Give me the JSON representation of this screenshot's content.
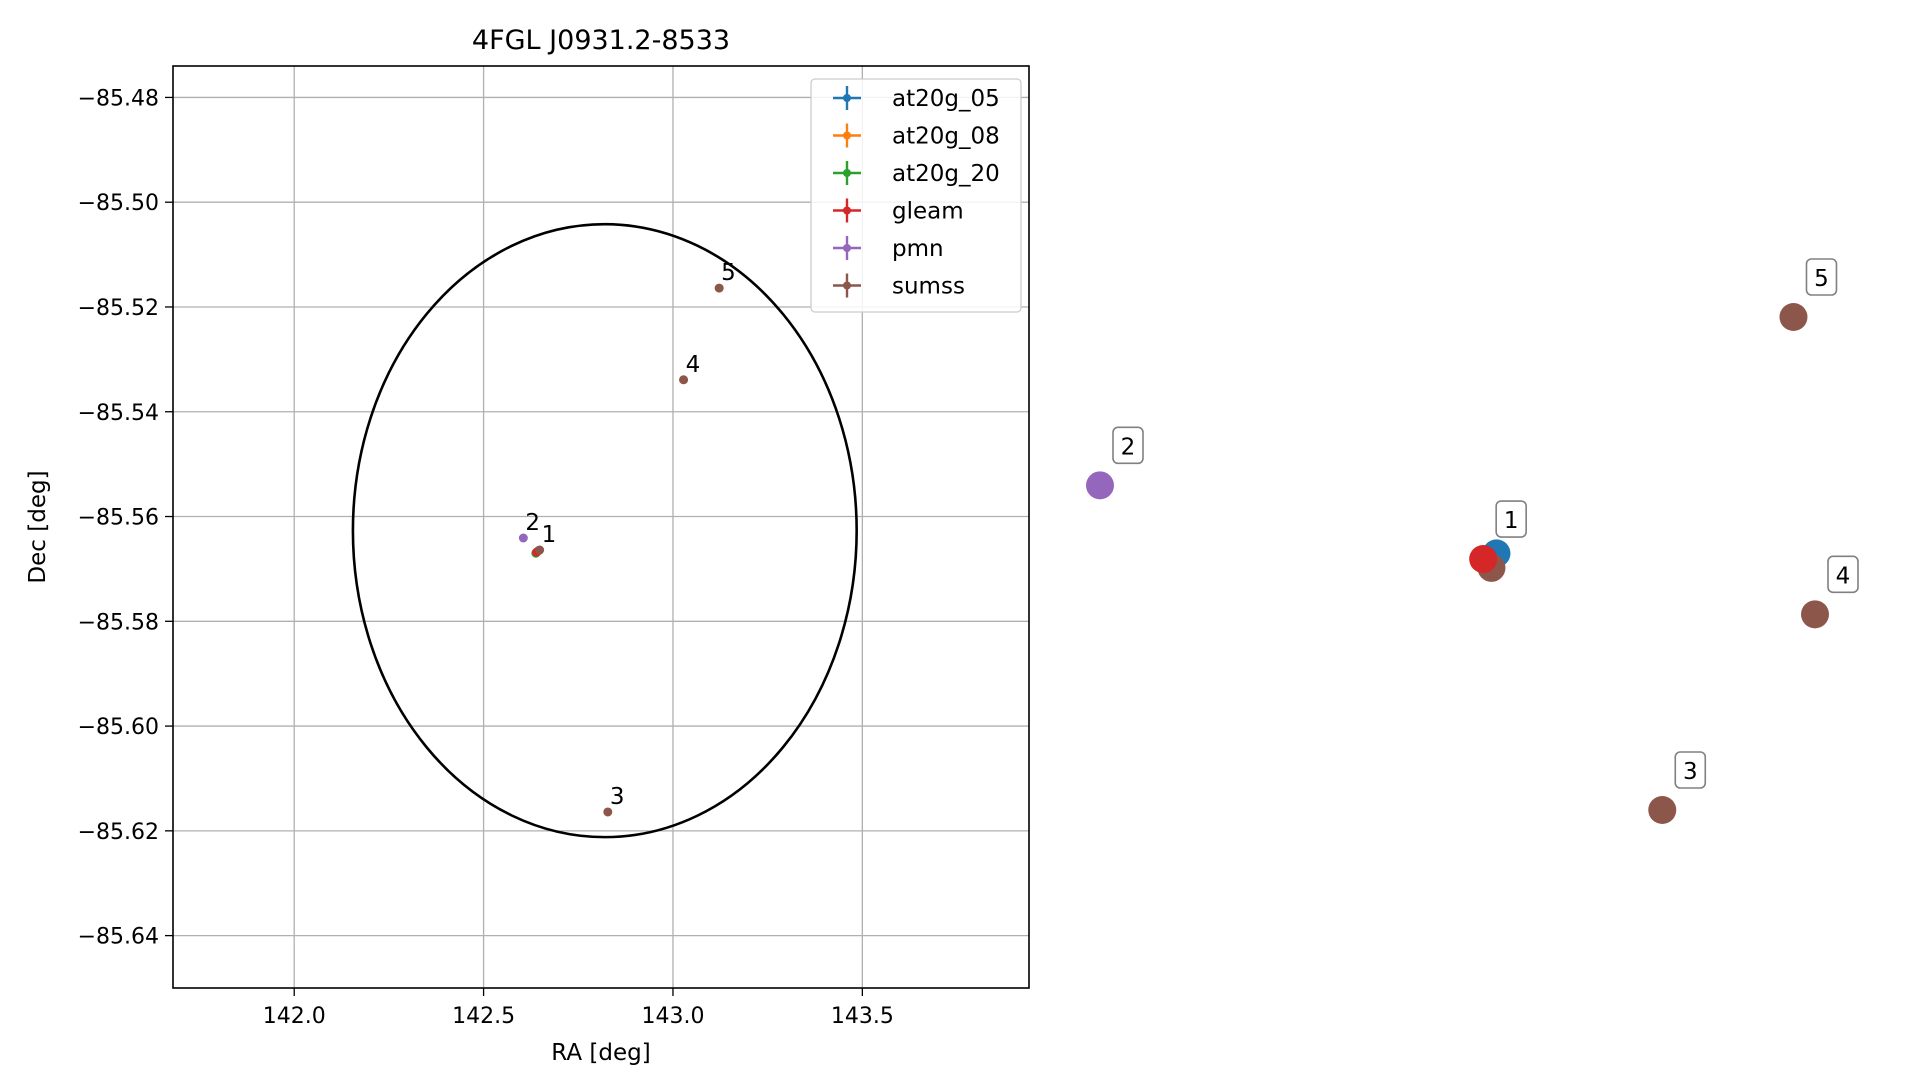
{
  "chart_data": [
    {
      "type": "scatter",
      "title": "4FGL J0931.2-8533",
      "xlabel": "RA [deg]",
      "ylabel": "Dec [deg]",
      "xlim": [
        141.68,
        143.94
      ],
      "ylim": [
        -85.65,
        -85.474
      ],
      "xticks": [
        142.0,
        142.5,
        143.0,
        143.5
      ],
      "xtick_labels": [
        "142.0",
        "142.5",
        "143.0",
        "143.5"
      ],
      "yticks": [
        -85.48,
        -85.5,
        -85.52,
        -85.54,
        -85.56,
        -85.58,
        -85.6,
        -85.62,
        -85.64
      ],
      "ytick_labels": [
        "−85.48",
        "−85.50",
        "−85.52",
        "−85.54",
        "−85.56",
        "−85.58",
        "−85.60",
        "−85.62",
        "−85.64"
      ],
      "grid": true,
      "legend_position": "top-right",
      "ellipse": {
        "center": [
          142.82,
          -85.5627
        ],
        "semi_axis_ra": 0.665,
        "semi_axis_dec": 0.0585,
        "color": "#000000"
      },
      "series": [
        {
          "name": "at20g_05",
          "color": "#1f77b4",
          "points": [
            {
              "x": 142.645,
              "y": -85.5665,
              "label": ""
            }
          ]
        },
        {
          "name": "at20g_08",
          "color": "#ff7f0e",
          "points": [
            {
              "x": 142.642,
              "y": -85.5667,
              "label": ""
            }
          ]
        },
        {
          "name": "at20g_20",
          "color": "#2ca02c",
          "points": [
            {
              "x": 142.638,
              "y": -85.567,
              "label": ""
            }
          ]
        },
        {
          "name": "gleam",
          "color": "#d62728",
          "points": [
            {
              "x": 142.64,
              "y": -85.5668,
              "label": ""
            }
          ]
        },
        {
          "name": "pmn",
          "color": "#9467bd",
          "points": [
            {
              "x": 142.605,
              "y": -85.5641,
              "label": "2"
            }
          ]
        },
        {
          "name": "sumss",
          "color": "#8c564b",
          "points": [
            {
              "x": 142.648,
              "y": -85.5664,
              "label": "1"
            },
            {
              "x": 142.828,
              "y": -85.6164,
              "label": "3"
            },
            {
              "x": 143.028,
              "y": -85.5339,
              "label": "4"
            },
            {
              "x": 143.122,
              "y": -85.5164,
              "label": "5"
            }
          ]
        }
      ]
    },
    {
      "type": "scatter",
      "title": "",
      "axes_visible": false,
      "series": [
        {
          "name": "at20g_05",
          "color": "#1f77b4",
          "points": [
            {
              "x": 0.5545,
              "y": 0.5205,
              "label": ""
            }
          ]
        },
        {
          "name": "pmn",
          "color": "#9467bd",
          "points": [
            {
              "x": 0.0,
              "y": 0.6585,
              "label": "2"
            }
          ]
        },
        {
          "name": "sumss",
          "color": "#8c564b",
          "points": [
            {
              "x": 0.5475,
              "y": 0.4911,
              "label": ""
            },
            {
              "x": 0.7864,
              "y": 0.0,
              "label": "3"
            },
            {
              "x": 1.0,
              "y": 0.3969,
              "label": "4"
            },
            {
              "x": 0.9699,
              "y": 1.0,
              "label": "5"
            }
          ]
        },
        {
          "name": "gleam",
          "color": "#d62728",
          "points": [
            {
              "x": 0.5359,
              "y": 0.5091,
              "label": "1"
            }
          ]
        }
      ]
    }
  ]
}
